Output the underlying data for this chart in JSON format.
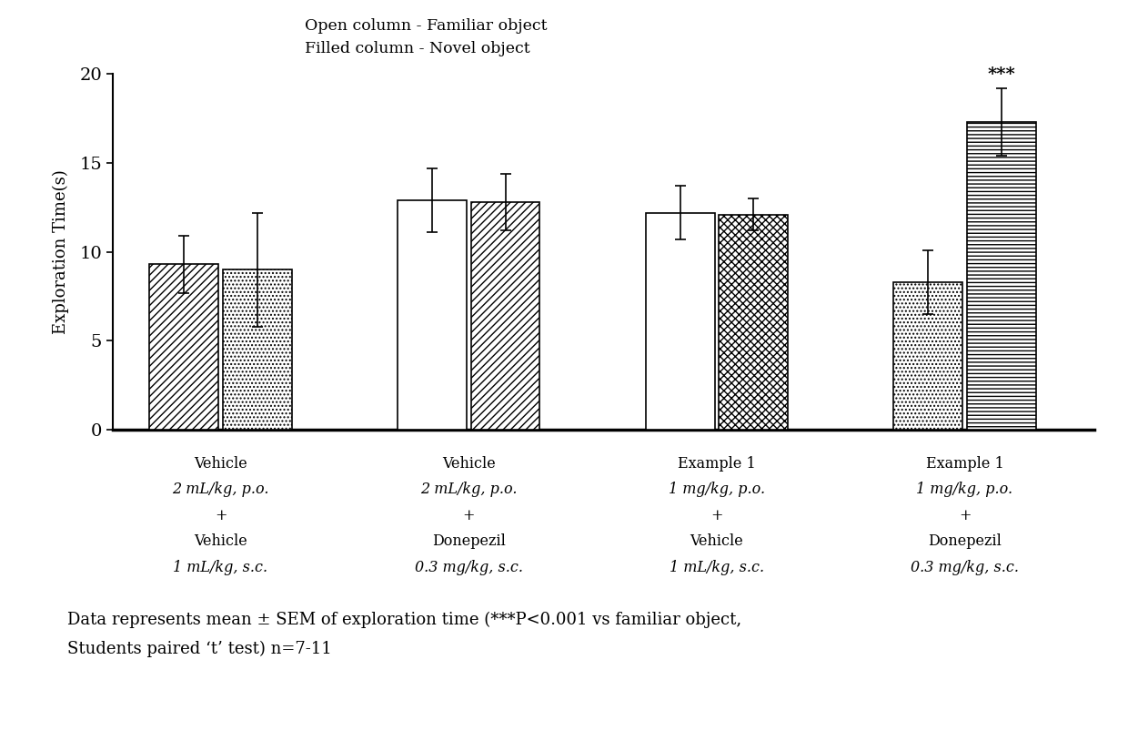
{
  "groups": [
    {
      "familiar_mean": 9.3,
      "familiar_sem": 1.6,
      "novel_mean": 9.0,
      "novel_sem": 3.2,
      "fam_hatch": "////",
      "nov_hatch": "....",
      "fam_fc": "white",
      "nov_fc": "white"
    },
    {
      "familiar_mean": 12.9,
      "familiar_sem": 1.8,
      "novel_mean": 12.8,
      "novel_sem": 1.6,
      "fam_hatch": "",
      "nov_hatch": "////",
      "fam_fc": "white",
      "nov_fc": "white"
    },
    {
      "familiar_mean": 12.2,
      "familiar_sem": 1.5,
      "novel_mean": 12.1,
      "novel_sem": 0.9,
      "fam_hatch": "",
      "nov_hatch": "xxxx",
      "fam_fc": "white",
      "nov_fc": "white"
    },
    {
      "familiar_mean": 8.3,
      "familiar_sem": 1.8,
      "novel_mean": 17.3,
      "novel_sem": 1.9,
      "novel_sig": "***",
      "fam_hatch": "....",
      "nov_hatch": "----",
      "fam_fc": "white",
      "nov_fc": "white"
    }
  ],
  "group_labels_line1": [
    "Vehicle",
    "Vehicle",
    "Example 1",
    "Example 1"
  ],
  "group_labels_line2": [
    "2 mL/kg, p.o.",
    "2 mL/kg, p.o.",
    "1 mg/kg, p.o.",
    "1 mg/kg, p.o."
  ],
  "group_labels_line3": [
    "+",
    "+",
    "+",
    "+"
  ],
  "group_labels_line4": [
    "Vehicle",
    "Donepezil",
    "Vehicle",
    "Donepezil"
  ],
  "group_labels_line5": [
    "1 mL/kg, s.c.",
    "0.3 mg/kg, s.c.",
    "1 mL/kg, s.c.",
    "0.3 mg/kg, s.c."
  ],
  "ylabel": "Exploration Time(s)",
  "ylim": [
    0,
    20
  ],
  "yticks": [
    0,
    5,
    10,
    15,
    20
  ],
  "legend_open": "Open column - Familiar object",
  "legend_filled": "Filled column - Novel object",
  "footnote_line1": "Data represents mean ± SEM of exploration time (***P<0.001 vs familiar object,",
  "footnote_line2": "Students paired ‘t’ test) n=7-11",
  "background_color": "#ffffff"
}
